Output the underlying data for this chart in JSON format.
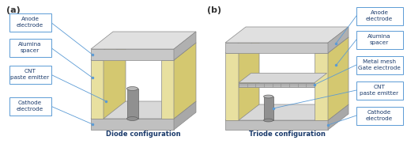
{
  "bg_color": "#ffffff",
  "label_border_color": "#5b9bd5",
  "label_text_color": "#1a3a6b",
  "annotation_line_color": "#5b9bd5",
  "title_color": "#1a3a6b",
  "panel_a_title": "(a)",
  "panel_b_title": "(b)",
  "diode_label": "Diode configuration",
  "triode_label": "Triode configuration",
  "diode_labels": [
    "Anode\nelectrode",
    "Alumina\nspacer",
    "CNT\npaste emitter",
    "Cathode\nelectrode"
  ],
  "triode_labels": [
    "Anode\nelectrode",
    "Alumina\nspacer",
    "Metal mesh\nGate electrode",
    "CNT\npaste emitter",
    "Cathode\nelectrode"
  ],
  "anode_front": "#c8c8c8",
  "anode_top": "#e0e0e0",
  "anode_right": "#b0b0b0",
  "alumina_front": "#e8e0a0",
  "alumina_top": "#f0e8b8",
  "alumina_right": "#d4c870",
  "cathode_front": "#c0c0c0",
  "cathode_top": "#d8d8d8",
  "cathode_right": "#a8a8a8",
  "cylinder_body": "#909090",
  "cylinder_top": "#b8b8b8",
  "mesh_front": "#c8c8c8",
  "mesh_top": "#d8d8d8",
  "mesh_line": "#909090"
}
